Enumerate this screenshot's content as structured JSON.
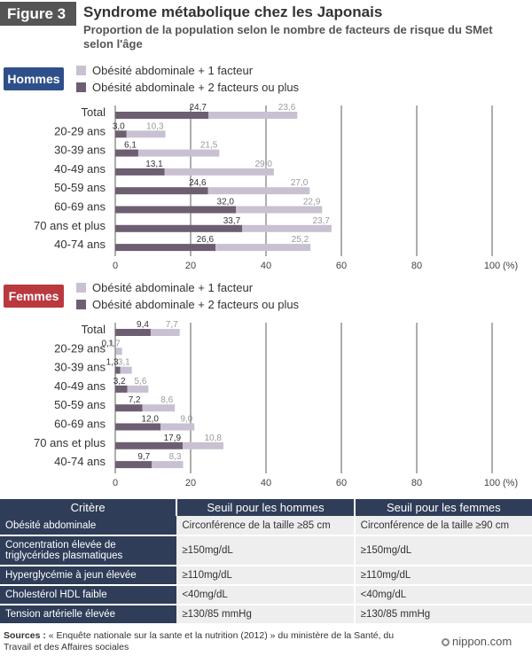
{
  "header": {
    "figure_label": "Figure 3",
    "title": "Syndrome métabolique chez les Japonais",
    "subtitle": "Proportion de la population selon le nombre de facteurs de risque du SMet selon l'âge"
  },
  "colors": {
    "light": "#c9c1d1",
    "dark": "#6e5e71",
    "men_badge": "#2f4f8a",
    "women_badge": "#b9393f",
    "gridline": "#333333",
    "table_header": "#2f3d58"
  },
  "legend": {
    "light_label": "Obésité abdominale + 1 facteur",
    "dark_label": "Obésité abdominale + 2 facteurs ou plus"
  },
  "chart_data": [
    {
      "type": "bar",
      "stacked": true,
      "orientation": "horizontal",
      "title": "Hommes",
      "categories": [
        "Total",
        "20-29 ans",
        "30-39 ans",
        "40-49 ans",
        "50-59 ans",
        "60-69 ans",
        "70 ans et plus",
        "40-74 ans"
      ],
      "series": [
        {
          "name": "Obésité abdominale + 2 facteurs ou plus",
          "values": [
            24.7,
            3.0,
            6.1,
            13.1,
            24.6,
            32.0,
            33.7,
            26.6
          ]
        },
        {
          "name": "Obésité abdominale + 1 facteur",
          "values": [
            23.6,
            10.3,
            21.5,
            29.0,
            27.0,
            22.9,
            23.7,
            25.2
          ]
        }
      ],
      "labels_dark": [
        "24,7",
        "3,0",
        "6,1",
        "13,1",
        "24,6",
        "32,0",
        "33,7",
        "26,6"
      ],
      "labels_light": [
        "23,6",
        "10,3",
        "21,5",
        "29,0",
        "27,0",
        "22,9",
        "23,7",
        "25,2"
      ],
      "xlim": [
        0,
        100
      ],
      "xticks": [
        0,
        20,
        40,
        60,
        80,
        100
      ],
      "xtick_labels": [
        "0",
        "20",
        "40",
        "60",
        "80",
        "100"
      ],
      "xunit": "(%)",
      "grid": true
    },
    {
      "type": "bar",
      "stacked": true,
      "orientation": "horizontal",
      "title": "Femmes",
      "categories": [
        "Total",
        "20-29 ans",
        "30-39 ans",
        "40-49 ans",
        "50-59 ans",
        "60-69 ans",
        "70 ans et plus",
        "40-74 ans"
      ],
      "series": [
        {
          "name": "Obésité abdominale + 2 facteurs ou plus",
          "values": [
            9.4,
            0.1,
            1.3,
            3.2,
            7.2,
            12.0,
            17.9,
            9.7
          ]
        },
        {
          "name": "Obésité abdominale + 1 facteur",
          "values": [
            7.7,
            1.7,
            3.1,
            5.6,
            8.6,
            9.0,
            10.8,
            8.3
          ]
        }
      ],
      "labels_dark": [
        "9,4",
        "0,1",
        "1,3",
        "3,2",
        "7,2",
        "12,0",
        "17,9",
        "9,7"
      ],
      "labels_light": [
        "7,7",
        "1,7",
        "3,1",
        "5,6",
        "8,6",
        "9,0",
        "10,8",
        "8,3"
      ],
      "xlim": [
        0,
        100
      ],
      "xticks": [
        0,
        20,
        40,
        60,
        80,
        100
      ],
      "xtick_labels": [
        "0",
        "20",
        "40",
        "60",
        "80",
        "100"
      ],
      "xunit": "(%)",
      "grid": true
    }
  ],
  "table": {
    "headers": [
      "Critère",
      "Seuil pour les hommes",
      "Seuil pour les femmes"
    ],
    "rows": [
      [
        "Obésité abdominale",
        "Circonférence de la taille ≥85 cm",
        "Circonférence de la taille ≥90 cm"
      ],
      [
        "Concentration élevée de triglycérides plasmatiques",
        "≥150mg/dL",
        "≥150mg/dL"
      ],
      [
        "Hyperglycémie à jeun élevée",
        "≥110mg/dL",
        "≥110mg/dL"
      ],
      [
        "Cholestérol HDL faible",
        "<40mg/dL",
        "<40mg/dL"
      ],
      [
        "Tension artérielle élevée",
        "≥130/85 mmHg",
        "≥130/85 mmHg"
      ]
    ]
  },
  "footer": {
    "sources_label": "Sources :",
    "sources_text": " « Enquête nationale sur la sante et la nutrition (2012) » du ministère de la Santé, du Travail et des Affaires sociales",
    "logo_text": "nippon.com"
  }
}
